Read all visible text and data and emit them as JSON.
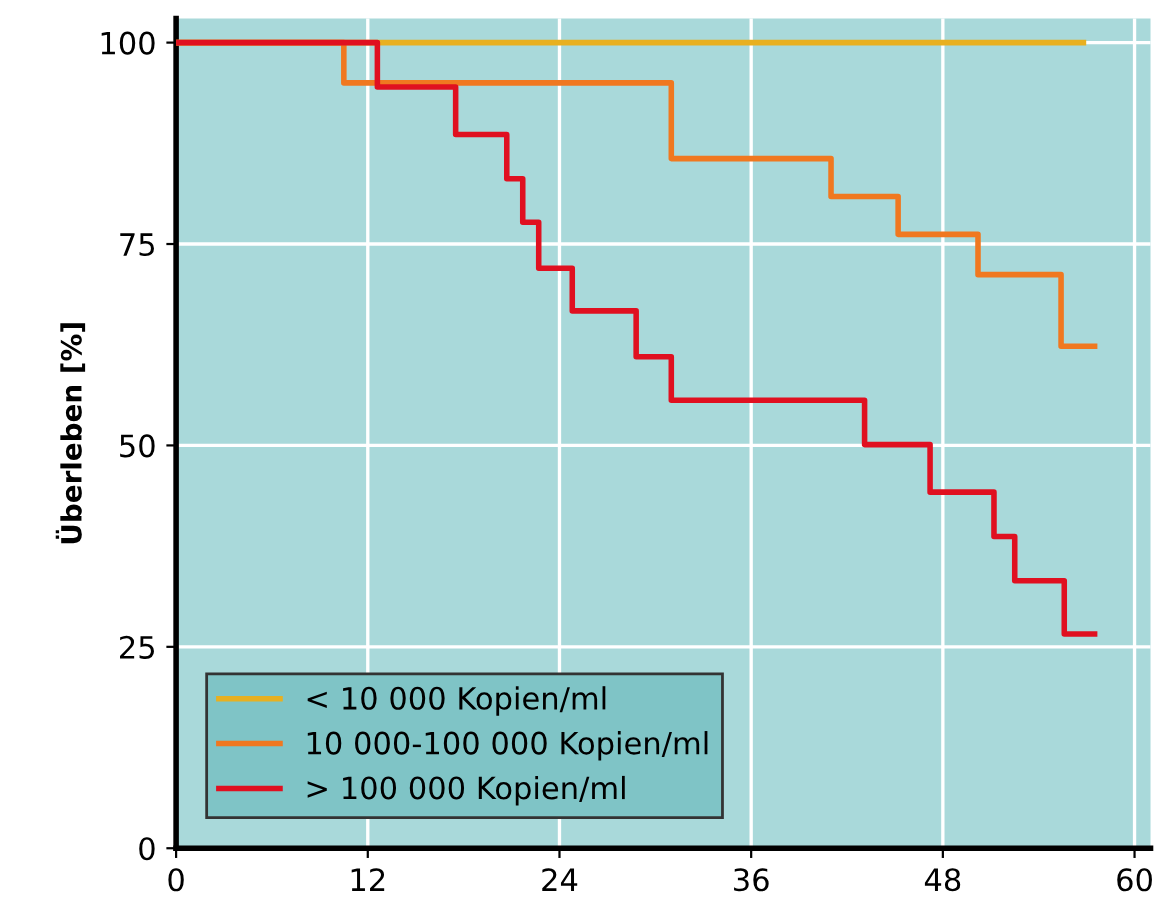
{
  "chart_data": {
    "type": "step",
    "ylabel": "Überleben [%]",
    "xlim": [
      0,
      61
    ],
    "ylim": [
      0,
      103
    ],
    "xticks": [
      0,
      12,
      24,
      36,
      48,
      60
    ],
    "yticks": [
      0,
      25,
      50,
      75,
      100
    ],
    "grid": true,
    "legend": "bottom left",
    "line_style": "solid",
    "marker": "none",
    "series": [
      {
        "name": "< 10 000 Kopien/ml",
        "color": "#e8b020",
        "x": [
          0,
          56.8
        ],
        "values": [
          100,
          100
        ]
      },
      {
        "name": "10 000-100 000 Kopien/ml",
        "color": "#f07820",
        "x": [
          0,
          10.5,
          31,
          41,
          45.2,
          50.2,
          55.4,
          57.5
        ],
        "values": [
          100,
          95,
          85.6,
          80.9,
          76.2,
          71.2,
          62.3,
          62.3
        ]
      },
      {
        "name": "> 100 000 Kopien/ml",
        "color": "#e01020",
        "x": [
          0,
          12.6,
          17.5,
          20.7,
          21.7,
          22.7,
          24.8,
          28.8,
          31,
          43.1,
          47.2,
          51.2,
          52.5,
          55.6,
          57.5
        ],
        "values": [
          100,
          94.5,
          88.6,
          83.1,
          77.7,
          72,
          66.7,
          61,
          55.6,
          50.1,
          44.2,
          38.7,
          33.2,
          26.6,
          26.6
        ]
      }
    ]
  }
}
